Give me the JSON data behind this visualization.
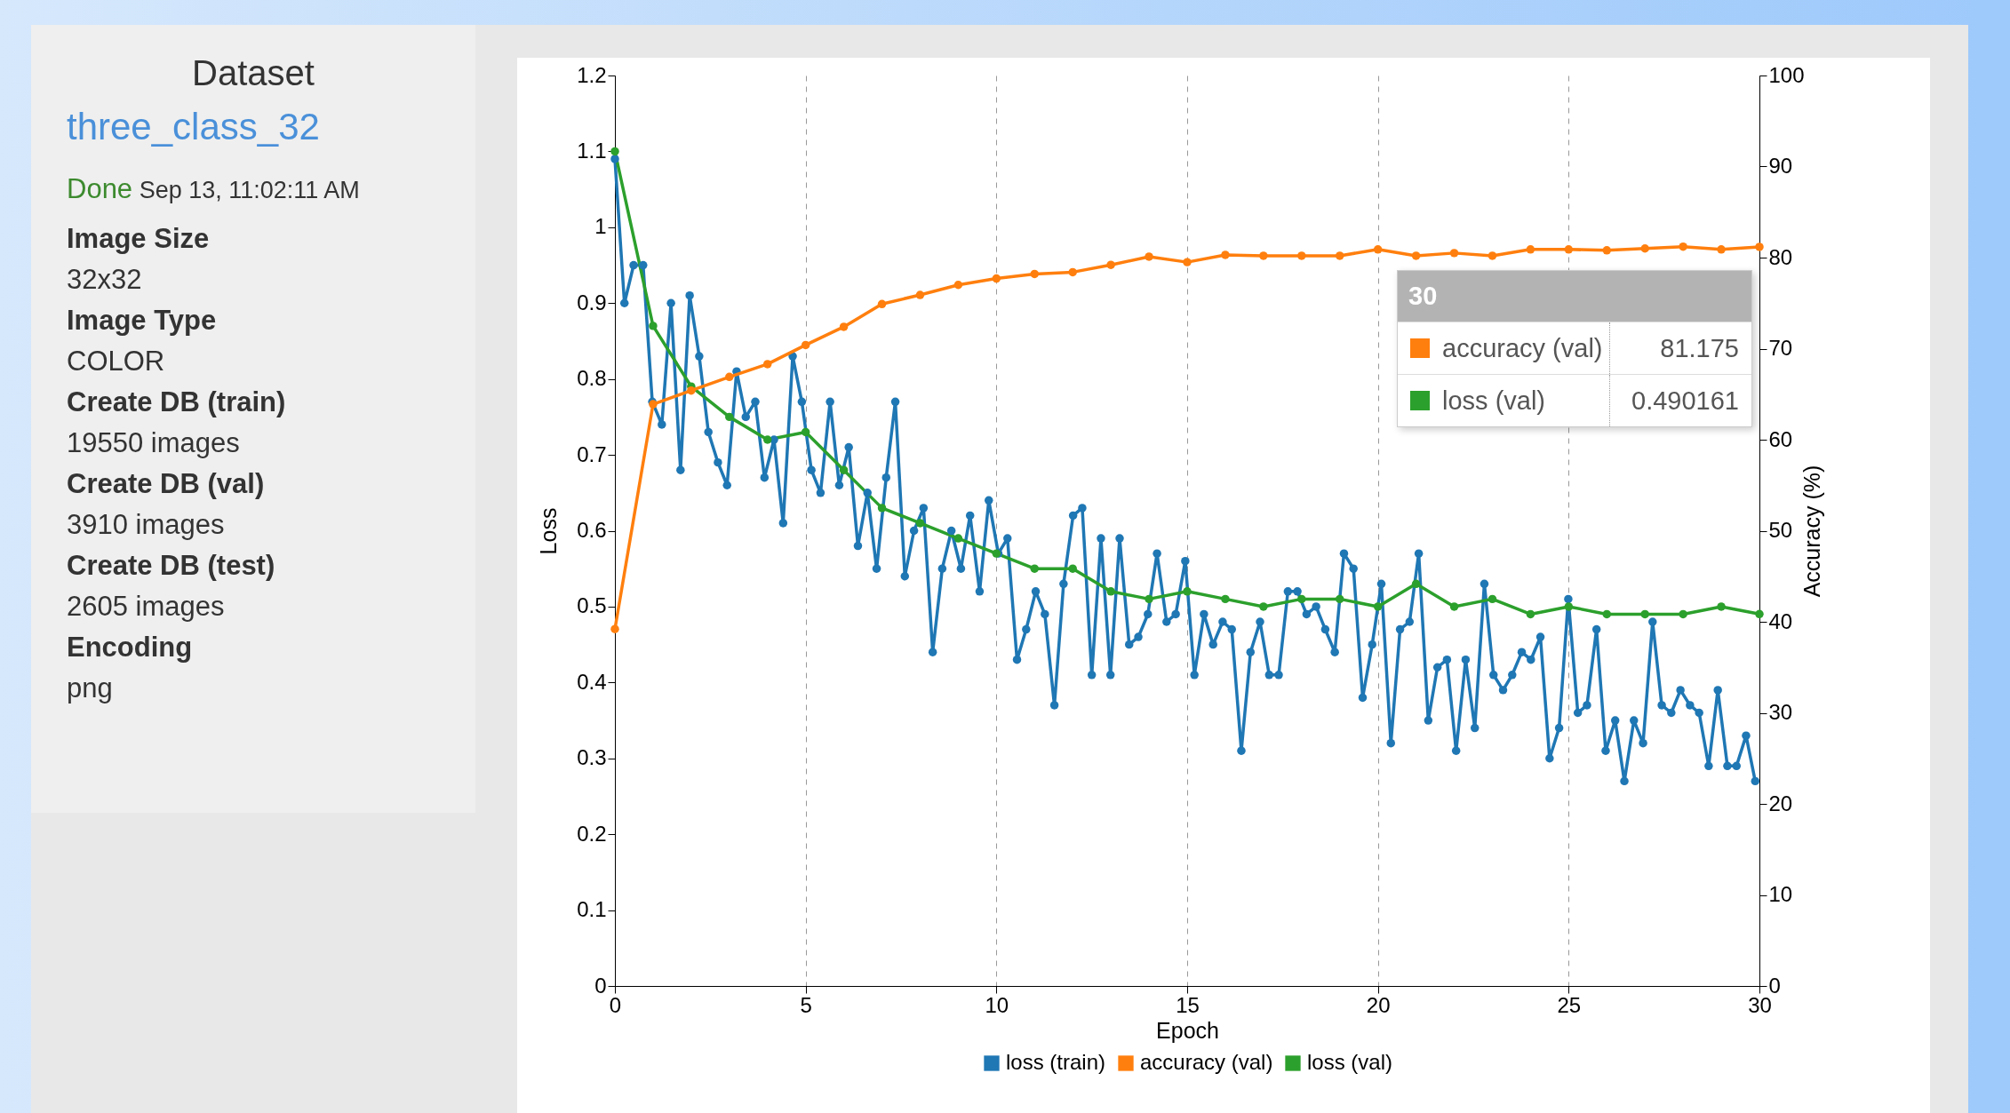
{
  "chart_data": [
    {
      "type": "other",
      "title": "Dataset",
      "annotations": [
        "three_class_32",
        "Done",
        "Sep 13, 11:02:11 AM",
        "Image Size",
        "32x32",
        "Image Type",
        "COLOR",
        "Create DB (train)",
        "19550 images",
        "Create DB (val)",
        "3910 images",
        "Create DB (test)",
        "2605 images",
        "Encoding",
        "png"
      ]
    },
    {
      "type": "line",
      "xlabel": "Epoch",
      "ylabel": "Loss",
      "y2label": "Accuracy (%)",
      "xlim": [
        0,
        30
      ],
      "xticks": [
        0,
        5,
        10,
        15,
        20,
        25,
        30
      ],
      "ylim": [
        0,
        1.2
      ],
      "yticks": [
        0,
        0.1,
        0.2,
        0.3,
        0.4,
        0.5,
        0.6,
        0.7,
        0.8,
        0.9,
        1,
        1.1,
        1.2
      ],
      "y2lim": [
        0,
        100
      ],
      "y2ticks": [
        0,
        10,
        20,
        30,
        40,
        50,
        60,
        70,
        80,
        90,
        100
      ],
      "grid": "x",
      "legend": "bottom",
      "marker": "circle",
      "line_style": "solid",
      "series": [
        {
          "name": "loss (train)",
          "color": "#1f77b4",
          "x": [
            0,
            0.25,
            0.49,
            0.74,
            0.98,
            1.23,
            1.47,
            1.72,
            1.96,
            2.21,
            2.45,
            2.7,
            2.94,
            3.19,
            3.43,
            3.68,
            3.92,
            4.17,
            4.41,
            4.66,
            4.9,
            5.15,
            5.39,
            5.64,
            5.88,
            6.13,
            6.37,
            6.62,
            6.86,
            7.11,
            7.35,
            7.6,
            7.84,
            8.09,
            8.33,
            8.58,
            8.82,
            9.07,
            9.31,
            9.56,
            9.8,
            10.05,
            10.29,
            10.54,
            10.78,
            11.03,
            11.27,
            11.52,
            11.76,
            12.01,
            12.25,
            12.5,
            12.74,
            12.99,
            13.23,
            13.48,
            13.72,
            13.97,
            14.21,
            14.46,
            14.7,
            14.95,
            15.19,
            15.44,
            15.68,
            15.93,
            16.17,
            16.42,
            16.66,
            16.91,
            17.15,
            17.4,
            17.64,
            17.89,
            18.13,
            18.38,
            18.62,
            18.87,
            19.11,
            19.36,
            19.6,
            19.85,
            20.09,
            20.34,
            20.58,
            20.83,
            21.07,
            21.32,
            21.56,
            21.81,
            22.05,
            22.3,
            22.54,
            22.79,
            23.03,
            23.28,
            23.52,
            23.77,
            24.01,
            24.26,
            24.5,
            24.75,
            24.99,
            25.24,
            25.48,
            25.73,
            25.97,
            26.22,
            26.46,
            26.71,
            26.95,
            27.2,
            27.44,
            27.69,
            27.93,
            28.18,
            28.42,
            28.67,
            28.91,
            29.16,
            29.4,
            29.65,
            29.89
          ],
          "values": [
            1.09,
            0.9,
            0.95,
            0.95,
            0.77,
            0.74,
            0.9,
            0.68,
            0.91,
            0.83,
            0.73,
            0.69,
            0.66,
            0.81,
            0.75,
            0.77,
            0.67,
            0.72,
            0.61,
            0.83,
            0.77,
            0.68,
            0.65,
            0.77,
            0.66,
            0.71,
            0.58,
            0.65,
            0.55,
            0.67,
            0.77,
            0.54,
            0.6,
            0.63,
            0.44,
            0.55,
            0.6,
            0.55,
            0.62,
            0.52,
            0.64,
            0.57,
            0.59,
            0.43,
            0.47,
            0.52,
            0.49,
            0.37,
            0.53,
            0.62,
            0.63,
            0.41,
            0.59,
            0.41,
            0.59,
            0.45,
            0.46,
            0.49,
            0.57,
            0.48,
            0.49,
            0.56,
            0.41,
            0.49,
            0.45,
            0.48,
            0.47,
            0.31,
            0.44,
            0.48,
            0.41,
            0.41,
            0.52,
            0.52,
            0.49,
            0.5,
            0.47,
            0.44,
            0.57,
            0.55,
            0.38,
            0.45,
            0.53,
            0.32,
            0.47,
            0.48,
            0.57,
            0.35,
            0.42,
            0.43,
            0.31,
            0.43,
            0.34,
            0.53,
            0.41,
            0.39,
            0.41,
            0.44,
            0.43,
            0.46,
            0.3,
            0.34,
            0.51,
            0.36,
            0.37,
            0.47,
            0.31,
            0.35,
            0.27,
            0.35,
            0.32,
            0.48,
            0.37,
            0.36,
            0.39,
            0.37,
            0.36,
            0.29,
            0.39,
            0.29,
            0.29,
            0.33,
            0.27
          ]
        },
        {
          "name": "accuracy (val)",
          "color": "#ff7f0e",
          "axis": "y2",
          "x": [
            0,
            1,
            2,
            3,
            4,
            5,
            6,
            7,
            8,
            9,
            10,
            11,
            12,
            13,
            14,
            15,
            16,
            17,
            18,
            19,
            20,
            21,
            22,
            23,
            24,
            25,
            26,
            27,
            28,
            29,
            30
          ],
          "values": [
            39.2,
            63.9,
            65.4,
            66.9,
            68.3,
            70.4,
            72.4,
            74.9,
            75.9,
            77,
            77.7,
            78.2,
            78.4,
            79.2,
            80.1,
            79.5,
            80.3,
            80.2,
            80.2,
            80.2,
            80.9,
            80.2,
            80.5,
            80.2,
            80.9,
            80.9,
            80.8,
            81,
            81.2,
            80.9,
            81.175
          ]
        },
        {
          "name": "loss (val)",
          "color": "#2ca02c",
          "x": [
            0,
            1,
            2,
            3,
            4,
            5,
            6,
            7,
            8,
            9,
            10,
            11,
            12,
            13,
            14,
            15,
            16,
            17,
            18,
            19,
            20,
            21,
            22,
            23,
            24,
            25,
            26,
            27,
            28,
            29,
            30
          ],
          "values": [
            1.1,
            0.87,
            0.79,
            0.75,
            0.72,
            0.73,
            0.68,
            0.63,
            0.61,
            0.59,
            0.57,
            0.55,
            0.55,
            0.52,
            0.51,
            0.52,
            0.51,
            0.5,
            0.51,
            0.51,
            0.5,
            0.53,
            0.5,
            0.51,
            0.49,
            0.5,
            0.49,
            0.49,
            0.49,
            0.5,
            0.490161
          ]
        }
      ],
      "annotations": [
        "30",
        "accuracy (val)",
        "81.175",
        "loss (val)",
        "0.490161"
      ]
    }
  ]
}
